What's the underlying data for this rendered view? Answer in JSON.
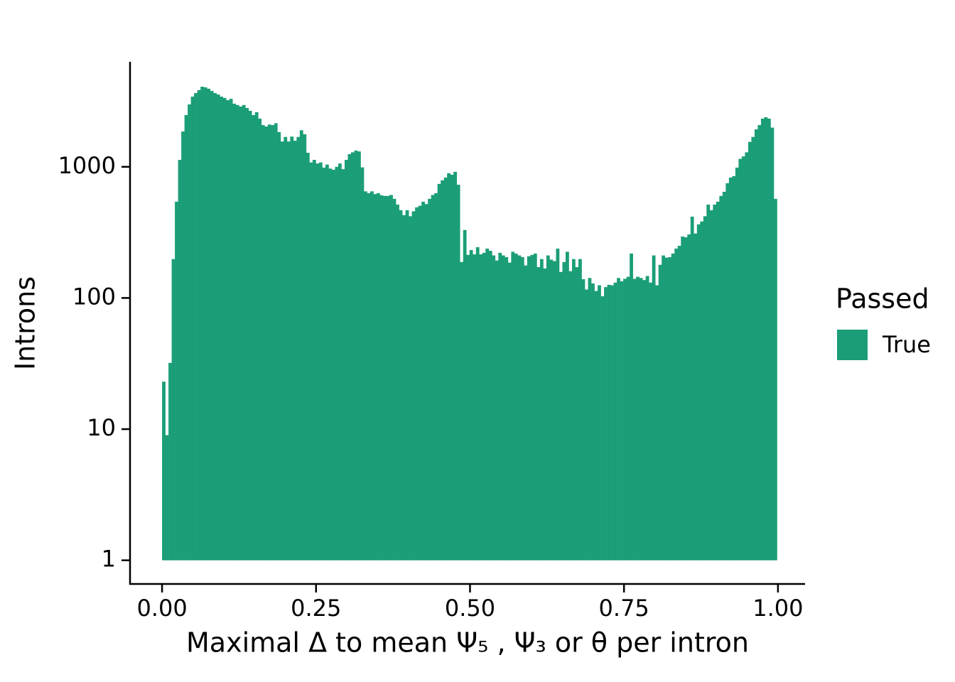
{
  "chart_data": {
    "type": "histogram",
    "x_label": "Maximal Δ to mean Ψ₅ , Ψ₃ or θ per intron",
    "y_label": "Introns",
    "legend_title": "Passed",
    "legend_position": "right",
    "log_y": true,
    "grid": false,
    "xlim": [
      -0.052,
      1.044
    ],
    "ylim": [
      0.66,
      6240
    ],
    "xticks": [
      {
        "value": 0,
        "label": "0.00"
      },
      {
        "value": 0.25,
        "label": "0.25"
      },
      {
        "value": 0.5,
        "label": "0.50"
      },
      {
        "value": 0.75,
        "label": "0.75"
      },
      {
        "value": 1,
        "label": "1.00"
      }
    ],
    "yticks": [
      1,
      10,
      100,
      1000
    ],
    "bins": [
      0,
      0.0052,
      0.0104,
      0.0156,
      0.0208,
      0.026,
      0.0312,
      0.0364,
      0.0416,
      0.0468,
      0.052,
      0.0572,
      0.0624,
      0.0676,
      0.0728,
      0.078,
      0.0832,
      0.0884,
      0.0936,
      0.0988,
      0.104,
      0.1092,
      0.1144,
      0.1196,
      0.1248,
      0.13,
      0.1352,
      0.1404,
      0.1456,
      0.1508,
      0.156,
      0.1612,
      0.1664,
      0.1716,
      0.1768,
      0.182,
      0.1872,
      0.1924,
      0.1976,
      0.2028,
      0.208,
      0.2132,
      0.2184,
      0.2236,
      0.2288,
      0.234,
      0.2392,
      0.2444,
      0.2496,
      0.2548,
      0.26,
      0.2652,
      0.2704,
      0.2756,
      0.2808,
      0.286,
      0.2912,
      0.2964,
      0.3016,
      0.3068,
      0.312,
      0.3172,
      0.3224,
      0.3276,
      0.3328,
      0.338,
      0.3432,
      0.3484,
      0.3536,
      0.3588,
      0.364,
      0.3692,
      0.3744,
      0.3796,
      0.3848,
      0.39,
      0.3952,
      0.4004,
      0.4056,
      0.4108,
      0.416,
      0.4212,
      0.4264,
      0.4316,
      0.4368,
      0.442,
      0.4472,
      0.4524,
      0.4576,
      0.4628,
      0.468,
      0.4732,
      0.4784,
      0.4836,
      0.4888,
      0.494,
      0.4992,
      0.5044,
      0.5096,
      0.5148,
      0.52,
      0.5252,
      0.5304,
      0.5356,
      0.5408,
      0.546,
      0.5512,
      0.5564,
      0.5616,
      0.5668,
      0.572,
      0.5772,
      0.5824,
      0.5876,
      0.5928,
      0.598,
      0.6032,
      0.6084,
      0.6136,
      0.6188,
      0.624,
      0.6292,
      0.6344,
      0.6396,
      0.6448,
      0.65,
      0.6552,
      0.6604,
      0.6656,
      0.6708,
      0.676,
      0.6812,
      0.6864,
      0.6916,
      0.6968,
      0.702,
      0.7072,
      0.7124,
      0.7176,
      0.7228,
      0.728,
      0.7332,
      0.7384,
      0.7436,
      0.7488,
      0.754,
      0.7592,
      0.7644,
      0.7696,
      0.7748,
      0.78,
      0.7852,
      0.7904,
      0.7956,
      0.8008,
      0.806,
      0.8112,
      0.8164,
      0.8216,
      0.8268,
      0.832,
      0.8372,
      0.8424,
      0.8476,
      0.8528,
      0.858,
      0.8632,
      0.8684,
      0.8736,
      0.8788,
      0.884,
      0.8892,
      0.8944,
      0.8996,
      0.9048,
      0.91,
      0.9152,
      0.9204,
      0.9256,
      0.9308,
      0.936,
      0.9412,
      0.9464,
      0.9516,
      0.9568,
      0.962,
      0.9672,
      0.9724,
      0.9776,
      0.9828,
      0.988,
      0.9932,
      0.9984
    ],
    "series": [
      {
        "name": "True",
        "color": "#1b9e77",
        "values": [
          23,
          9,
          32,
          198,
          542,
          1130,
          1860,
          2480,
          2990,
          3430,
          3650,
          3840,
          4080,
          4040,
          3940,
          3790,
          3650,
          3560,
          3430,
          3350,
          3220,
          3300,
          3030,
          2960,
          2880,
          2960,
          2810,
          2670,
          2480,
          2610,
          2330,
          2080,
          2030,
          2100,
          2080,
          2150,
          1840,
          1560,
          1690,
          1560,
          1700,
          1580,
          1690,
          1900,
          1770,
          1280,
          1080,
          1130,
          1060,
          1080,
          986,
          1040,
          970,
          950,
          1000,
          1060,
          960,
          1130,
          1250,
          1290,
          1330,
          1310,
          990,
          650,
          630,
          650,
          620,
          630,
          607,
          600,
          600,
          610,
          570,
          515,
          467,
          428,
          467,
          420,
          458,
          491,
          505,
          542,
          520,
          570,
          610,
          630,
          741,
          789,
          829,
          893,
          870,
          916,
          730,
          188,
          330,
          213,
          232,
          215,
          244,
          215,
          221,
          238,
          229,
          211,
          193,
          221,
          211,
          205,
          186,
          225,
          218,
          211,
          205,
          177,
          208,
          213,
          218,
          172,
          198,
          168,
          211,
          196,
          191,
          238,
          158,
          188,
          225,
          160,
          198,
          172,
          198,
          139,
          116,
          142,
          129,
          113,
          125,
          103,
          121,
          126,
          125,
          131,
          142,
          134,
          140,
          145,
          218,
          140,
          145,
          142,
          137,
          147,
          131,
          211,
          125,
          179,
          211,
          203,
          205,
          218,
          238,
          250,
          294,
          290,
          305,
          417,
          310,
          364,
          383,
          420,
          515,
          467,
          515,
          542,
          600,
          645,
          750,
          829,
          849,
          986,
          1150,
          1200,
          1290,
          1550,
          1690,
          1930,
          2080,
          2330,
          2390,
          2330,
          1990,
          570
        ]
      }
    ]
  }
}
